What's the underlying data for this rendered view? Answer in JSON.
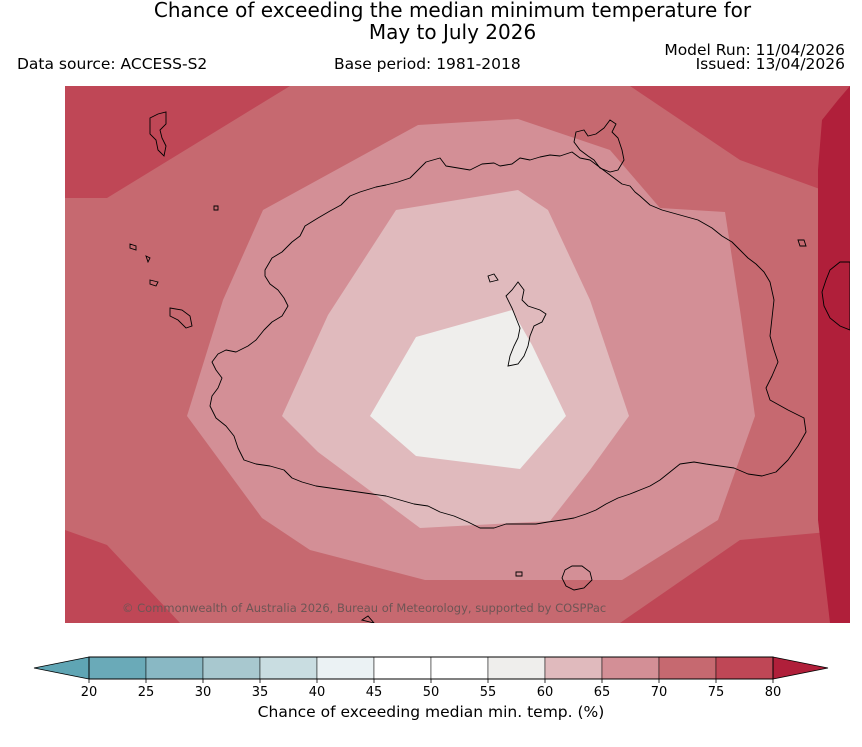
{
  "title": {
    "line1": "Chance of exceeding the median minimum temperature for",
    "line2": "May to July 2026"
  },
  "meta": {
    "data_source": "Data source: ACCESS-S2",
    "base_period": "Base period: 1981-2018",
    "model_run": "Model Run: 11/04/2026",
    "issued": "Issued: 13/04/2026"
  },
  "map": {
    "region": "Australia",
    "copyright": "© Commonwealth of Australia 2026, Bureau of Meteorology, supported by COSPPac"
  },
  "colorbar": {
    "label": "Chance of exceeding median min. temp. (%)",
    "ticks": [
      "20",
      "25",
      "30",
      "35",
      "40",
      "45",
      "50",
      "55",
      "60",
      "65",
      "70",
      "75",
      "80"
    ],
    "colors": {
      "below_20": "#5fa5b4",
      "c20_25": "#6aaab8",
      "c25_30": "#89b8c4",
      "c30_35": "#a8c8cf",
      "c35_40": "#c9dde1",
      "c40_45": "#ebf2f4",
      "c45_50": "#ffffff",
      "c50_55": "#ffffff",
      "c55_60": "#efeeec",
      "c60_65": "#e0babd",
      "c65_70": "#d38f96",
      "c70_75": "#c66970",
      "c75_80": "#bf4756",
      "above_80": "#b01f3a"
    }
  }
}
